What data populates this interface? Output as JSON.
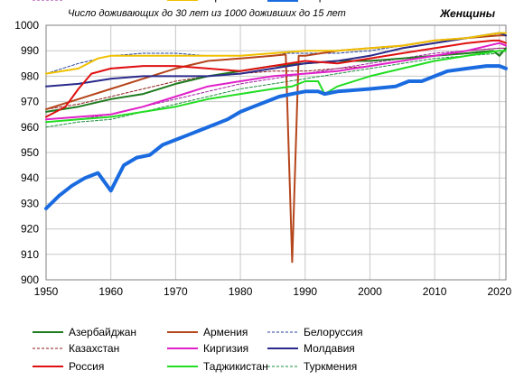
{
  "chart_data": {
    "type": "line",
    "title": "Число доживающих до 30 лет из 1000 доживших до 15 лет",
    "subtitle": "Женщины",
    "xlabel": "",
    "ylabel": "",
    "xlim": [
      1950,
      2021
    ],
    "ylim": [
      900,
      1000
    ],
    "x_ticks": [
      1950,
      1960,
      1970,
      1980,
      1990,
      2000,
      2010,
      2020
    ],
    "y_ticks": [
      900,
      910,
      920,
      930,
      940,
      950,
      960,
      970,
      980,
      990,
      1000
    ],
    "grid": true,
    "legend_position": "bottom",
    "series": [
      {
        "name": "Азербайджан",
        "color": "#1e7b1e",
        "dash": "solid",
        "width": 2,
        "points": [
          [
            1950,
            966
          ],
          [
            1955,
            968
          ],
          [
            1960,
            971
          ],
          [
            1965,
            973
          ],
          [
            1970,
            977
          ],
          [
            1975,
            980
          ],
          [
            1980,
            982
          ],
          [
            1985,
            984
          ],
          [
            1990,
            985
          ],
          [
            1995,
            986
          ],
          [
            2000,
            986
          ],
          [
            2005,
            987
          ],
          [
            2010,
            988
          ],
          [
            2015,
            989
          ],
          [
            2019,
            990
          ],
          [
            2020,
            988
          ],
          [
            2021,
            991
          ]
        ]
      },
      {
        "name": "Армения",
        "color": "#b5451b",
        "dash": "solid",
        "width": 2,
        "points": [
          [
            1950,
            967
          ],
          [
            1955,
            971
          ],
          [
            1960,
            975
          ],
          [
            1965,
            979
          ],
          [
            1970,
            983
          ],
          [
            1975,
            986
          ],
          [
            1980,
            987
          ],
          [
            1985,
            988
          ],
          [
            1987,
            988.5
          ],
          [
            1988,
            907
          ],
          [
            1989,
            988
          ],
          [
            1990,
            988
          ],
          [
            1995,
            990
          ],
          [
            2000,
            991
          ],
          [
            2005,
            992
          ],
          [
            2010,
            994
          ],
          [
            2015,
            995
          ],
          [
            2020,
            996
          ],
          [
            2021,
            996
          ]
        ]
      },
      {
        "name": "Белоруссия",
        "color": "#1f3fa0",
        "dash": "dashed",
        "width": 1,
        "points": [
          [
            1950,
            981
          ],
          [
            1955,
            985
          ],
          [
            1960,
            988
          ],
          [
            1965,
            989
          ],
          [
            1970,
            989
          ],
          [
            1975,
            988
          ],
          [
            1980,
            988
          ],
          [
            1985,
            989
          ],
          [
            1990,
            989
          ],
          [
            1995,
            989
          ],
          [
            2000,
            990
          ],
          [
            2005,
            992
          ],
          [
            2010,
            994
          ],
          [
            2015,
            995
          ],
          [
            2020,
            996
          ],
          [
            2021,
            996
          ]
        ]
      },
      {
        "name": "Казахстан",
        "color": "#8b1a1a",
        "dash": "dashed",
        "width": 1,
        "points": [
          [
            1950,
            967
          ],
          [
            1955,
            969
          ],
          [
            1960,
            972
          ],
          [
            1965,
            975
          ],
          [
            1970,
            978
          ],
          [
            1975,
            980
          ],
          [
            1980,
            981
          ],
          [
            1985,
            982
          ],
          [
            1990,
            982
          ],
          [
            1995,
            983
          ],
          [
            2000,
            984
          ],
          [
            2005,
            986
          ],
          [
            2010,
            988
          ],
          [
            2015,
            990
          ],
          [
            2020,
            991
          ],
          [
            2021,
            991
          ]
        ]
      },
      {
        "name": "Киргизия",
        "color": "#e020c8",
        "dash": "solid",
        "width": 2,
        "points": [
          [
            1950,
            963
          ],
          [
            1955,
            964
          ],
          [
            1960,
            965
          ],
          [
            1965,
            968
          ],
          [
            1970,
            972
          ],
          [
            1975,
            976
          ],
          [
            1980,
            978
          ],
          [
            1985,
            980
          ],
          [
            1990,
            981
          ],
          [
            1995,
            982
          ],
          [
            2000,
            984
          ],
          [
            2005,
            986
          ],
          [
            2010,
            988
          ],
          [
            2015,
            990
          ],
          [
            2020,
            993
          ],
          [
            2021,
            992
          ]
        ]
      },
      {
        "name": "Молдавия",
        "color": "#2a2a8c",
        "dash": "solid",
        "width": 2,
        "points": [
          [
            1950,
            976
          ],
          [
            1955,
            977
          ],
          [
            1960,
            979
          ],
          [
            1965,
            980
          ],
          [
            1970,
            980
          ],
          [
            1975,
            980
          ],
          [
            1980,
            981
          ],
          [
            1985,
            983
          ],
          [
            1990,
            985
          ],
          [
            1995,
            986
          ],
          [
            2000,
            988
          ],
          [
            2005,
            991
          ],
          [
            2010,
            993
          ],
          [
            2015,
            995
          ],
          [
            2020,
            997
          ],
          [
            2021,
            996
          ]
        ]
      },
      {
        "name": "Россия",
        "color": "#e01010",
        "dash": "solid",
        "width": 2,
        "points": [
          [
            1950,
            964
          ],
          [
            1953,
            968
          ],
          [
            1955,
            975
          ],
          [
            1957,
            981
          ],
          [
            1960,
            983
          ],
          [
            1965,
            984
          ],
          [
            1970,
            984
          ],
          [
            1975,
            983
          ],
          [
            1980,
            982
          ],
          [
            1985,
            984
          ],
          [
            1990,
            986
          ],
          [
            1995,
            985
          ],
          [
            2000,
            987
          ],
          [
            2005,
            989
          ],
          [
            2010,
            991
          ],
          [
            2015,
            993
          ],
          [
            2019,
            994
          ],
          [
            2020,
            994
          ],
          [
            2021,
            993
          ]
        ]
      },
      {
        "name": "Таджикистан",
        "color": "#22dd22",
        "dash": "solid",
        "width": 2,
        "points": [
          [
            1950,
            962
          ],
          [
            1955,
            963
          ],
          [
            1960,
            964
          ],
          [
            1965,
            966
          ],
          [
            1970,
            968
          ],
          [
            1975,
            971
          ],
          [
            1980,
            973
          ],
          [
            1985,
            975
          ],
          [
            1988,
            976
          ],
          [
            1990,
            978
          ],
          [
            1992,
            978
          ],
          [
            1993,
            973
          ],
          [
            1995,
            976
          ],
          [
            2000,
            980
          ],
          [
            2005,
            983
          ],
          [
            2010,
            986
          ],
          [
            2015,
            988
          ],
          [
            2020,
            990
          ],
          [
            2021,
            990
          ]
        ]
      },
      {
        "name": "Туркмения",
        "color": "#1a8c3a",
        "dash": "dashed",
        "width": 1,
        "points": [
          [
            1950,
            960
          ],
          [
            1955,
            962
          ],
          [
            1960,
            963
          ],
          [
            1965,
            966
          ],
          [
            1970,
            969
          ],
          [
            1975,
            972
          ],
          [
            1980,
            975
          ],
          [
            1985,
            977
          ],
          [
            1990,
            979
          ],
          [
            1995,
            981
          ],
          [
            2000,
            983
          ],
          [
            2005,
            985
          ],
          [
            2010,
            987
          ],
          [
            2015,
            988
          ],
          [
            2020,
            989
          ],
          [
            2021,
            990
          ]
        ]
      },
      {
        "name": "Узбекистан",
        "color": "#a020a0",
        "dash": "dashed",
        "width": 1,
        "points": [
          [
            1950,
            962
          ],
          [
            1955,
            963
          ],
          [
            1960,
            965
          ],
          [
            1965,
            968
          ],
          [
            1970,
            971
          ],
          [
            1975,
            974
          ],
          [
            1980,
            977
          ],
          [
            1985,
            979
          ],
          [
            1990,
            981
          ],
          [
            1995,
            983
          ],
          [
            2000,
            985
          ],
          [
            2005,
            987
          ],
          [
            2010,
            989
          ],
          [
            2015,
            990
          ],
          [
            2020,
            991
          ],
          [
            2021,
            991
          ]
        ]
      },
      {
        "name": "Украина",
        "color": "#f0c000",
        "dash": "solid",
        "width": 2,
        "points": [
          [
            1950,
            981
          ],
          [
            1955,
            983
          ],
          [
            1958,
            987
          ],
          [
            1960,
            988
          ],
          [
            1965,
            988
          ],
          [
            1970,
            988
          ],
          [
            1975,
            988
          ],
          [
            1980,
            988
          ],
          [
            1985,
            989
          ],
          [
            1990,
            990
          ],
          [
            1995,
            990
          ],
          [
            2000,
            991
          ],
          [
            2005,
            992
          ],
          [
            2010,
            994
          ],
          [
            2015,
            995
          ],
          [
            2020,
            997
          ],
          [
            2021,
            997
          ]
        ]
      },
      {
        "name": "Мир",
        "color": "#1a6be0",
        "dash": "solid",
        "width": 4,
        "points": [
          [
            1950,
            928
          ],
          [
            1952,
            933
          ],
          [
            1954,
            937
          ],
          [
            1956,
            940
          ],
          [
            1958,
            942
          ],
          [
            1960,
            935
          ],
          [
            1962,
            945
          ],
          [
            1964,
            948
          ],
          [
            1966,
            949
          ],
          [
            1968,
            953
          ],
          [
            1970,
            955
          ],
          [
            1972,
            957
          ],
          [
            1974,
            959
          ],
          [
            1976,
            961
          ],
          [
            1978,
            963
          ],
          [
            1980,
            966
          ],
          [
            1982,
            968
          ],
          [
            1984,
            970
          ],
          [
            1986,
            972
          ],
          [
            1988,
            973
          ],
          [
            1990,
            974
          ],
          [
            1992,
            974
          ],
          [
            1993,
            973
          ],
          [
            1995,
            974
          ],
          [
            2000,
            975
          ],
          [
            2004,
            976
          ],
          [
            2006,
            978
          ],
          [
            2008,
            978
          ],
          [
            2010,
            980
          ],
          [
            2012,
            982
          ],
          [
            2015,
            983
          ],
          [
            2018,
            984
          ],
          [
            2020,
            984
          ],
          [
            2021,
            983
          ]
        ]
      }
    ]
  }
}
